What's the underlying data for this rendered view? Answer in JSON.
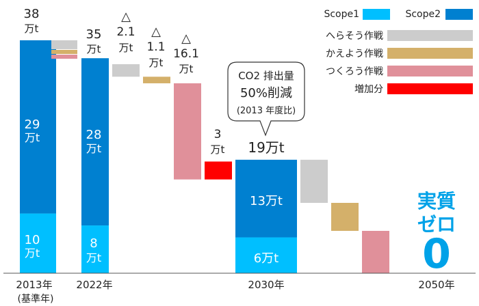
{
  "chart_data": {
    "type": "bar",
    "unit": "万t",
    "categories": [
      "2013年",
      "2022年",
      "2030年",
      "2050年"
    ],
    "category_notes": {
      "2013年": "(基準年)"
    },
    "series": [
      {
        "name": "Scope1",
        "values": [
          10,
          8,
          6,
          0
        ]
      },
      {
        "name": "Scope2",
        "values": [
          29,
          28,
          13,
          0
        ]
      }
    ],
    "totals": [
      {
        "category": "2013年",
        "value": 38,
        "label": "38"
      },
      {
        "category": "2022年",
        "value": 35,
        "label": "35"
      },
      {
        "category": "2030年",
        "value": 19,
        "label": "19万t"
      }
    ],
    "segment_labels": [
      {
        "category": "2013年",
        "series": "Scope1",
        "label": "10"
      },
      {
        "category": "2013年",
        "series": "Scope2",
        "label": "29"
      },
      {
        "category": "2022年",
        "series": "Scope1",
        "label": "8"
      },
      {
        "category": "2022年",
        "series": "Scope2",
        "label": "28"
      },
      {
        "category": "2030年",
        "series": "Scope1",
        "label": "6万t"
      },
      {
        "category": "2030年",
        "series": "Scope2",
        "label": "13万t"
      }
    ],
    "waterfall": [
      {
        "after": "2022年",
        "series": "へらそう作戦",
        "value": -2.1,
        "label": "△ 2.1"
      },
      {
        "after": "2022年",
        "series": "かえよう作戦",
        "value": -1.1,
        "label": "△ 1.1"
      },
      {
        "after": "2022年",
        "series": "つくろう作戦",
        "value": -16.1,
        "label": "△ 16.1"
      },
      {
        "after": "2022年",
        "series": "増加分",
        "value": 3,
        "label": "3"
      }
    ],
    "legend": [
      {
        "name": "Scope1",
        "color": "#00bfff"
      },
      {
        "name": "Scope2",
        "color": "#0080d0"
      },
      {
        "name": "へらそう作戦",
        "color": "#cccccc"
      },
      {
        "name": "かえよう作戦",
        "color": "#d4b06a"
      },
      {
        "name": "つくろう作戦",
        "color": "#e0909a"
      },
      {
        "name": "増加分",
        "color": "#ff0000"
      }
    ],
    "legend_position": "top-right",
    "callout": {
      "lines": [
        "CO2 排出量",
        "50%削減",
        "(2013 年度比)"
      ]
    },
    "target": {
      "lines": [
        "実質",
        "ゼロ"
      ],
      "value": "0"
    },
    "ylim": [
      0,
      40
    ],
    "grid": false
  }
}
